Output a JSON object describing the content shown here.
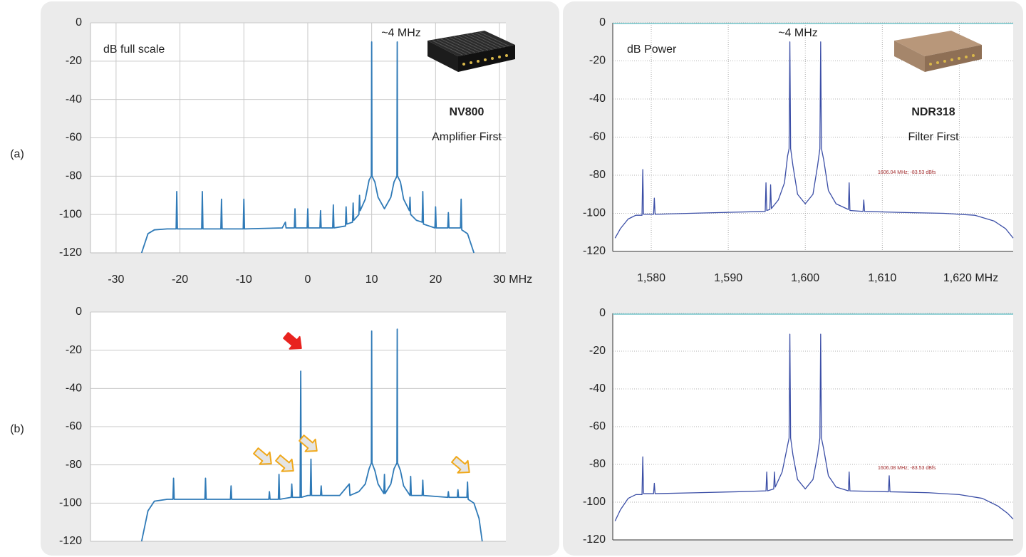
{
  "panel_labels": [
    "(a)",
    "(b)"
  ],
  "chart_data": [
    {
      "type": "line",
      "color": "#2f7ab7",
      "grid": "solid",
      "ylabel": "dB full scale",
      "annotations": [
        "~4 MHz"
      ],
      "device": {
        "name": "NV800",
        "description": "Amplifier First"
      },
      "xlim": [
        -34,
        31
      ],
      "ylim": [
        -120,
        0
      ],
      "xticks": [
        -30,
        -20,
        -10,
        0,
        10,
        20,
        {
          "value": 30,
          "label": "30 MHz"
        }
      ],
      "yticks": [
        0,
        -20,
        -40,
        -60,
        -80,
        -100,
        -120
      ],
      "x": [
        -26,
        -25,
        -24,
        -22,
        -20.6,
        -20.5,
        -20.4,
        -16.6,
        -16.5,
        -16.4,
        -13.6,
        -13.5,
        -13.4,
        -10.1,
        -10,
        -9.9,
        -4,
        -3.5,
        -3.4,
        -2.1,
        -2,
        -1.9,
        -0.1,
        0,
        0.1,
        1.9,
        2,
        2.1,
        3.9,
        4,
        4.1,
        5.9,
        6,
        6.1,
        7,
        7.1,
        7.2,
        8,
        8.1,
        8.2,
        9,
        9.6,
        9.95,
        10,
        10.05,
        10.5,
        11,
        12,
        13,
        13.5,
        13.95,
        14,
        14.05,
        14.5,
        15,
        15.9,
        16,
        16.1,
        17,
        17.9,
        18,
        18.1,
        19,
        19.9,
        20,
        20.1,
        21.9,
        22,
        22.1,
        23.9,
        24,
        24.1,
        25,
        26
      ],
      "values": [
        -120,
        -110,
        -108,
        -107.5,
        -107.5,
        -88,
        -107.5,
        -107.5,
        -88,
        -107.5,
        -107.5,
        -92,
        -107.5,
        -107.5,
        -92,
        -107.5,
        -107,
        -104,
        -107,
        -107,
        -97,
        -107,
        -107,
        -97,
        -107,
        -107,
        -98,
        -107,
        -107,
        -95,
        -107,
        -106,
        -96,
        -105,
        -104,
        -94,
        -103,
        -100,
        -90,
        -98,
        -92,
        -82,
        -80,
        -10,
        -80,
        -83,
        -91,
        -97,
        -91,
        -83,
        -80,
        -10,
        -80,
        -83,
        -92,
        -98,
        -91,
        -100,
        -103,
        -104,
        -88,
        -105,
        -106,
        -107,
        -96,
        -107,
        -107,
        -99,
        -107,
        -107,
        -92,
        -108,
        -110,
        -120
      ]
    },
    {
      "type": "line",
      "color": "#3b4ea6",
      "grid": "dotted",
      "ylabel": "dB Power",
      "annotations": [
        "~4 MHz",
        "1606.04 MHz; -83.53 dBfs"
      ],
      "device": {
        "name": "NDR318",
        "description": "Filter First"
      },
      "xlim": [
        1575,
        1627
      ],
      "ylim": [
        -120,
        0
      ],
      "xticks": [
        {
          "value": 1580,
          "label": "1,580"
        },
        {
          "value": 1590,
          "label": "1,590"
        },
        {
          "value": 1600,
          "label": "1,600"
        },
        {
          "value": 1610,
          "label": "1,610"
        },
        {
          "value": 1620,
          "label": "1,620 MHz"
        }
      ],
      "yticks": [
        0,
        -20,
        -40,
        -60,
        -80,
        -100,
        -120
      ],
      "x": [
        1575.3,
        1576,
        1577,
        1578,
        1578.8,
        1578.9,
        1579,
        1580.3,
        1580.4,
        1580.5,
        1585,
        1590,
        1594.8,
        1594.9,
        1595,
        1595.4,
        1595.5,
        1595.6,
        1596.5,
        1597.3,
        1597.7,
        1597.9,
        1598,
        1598.1,
        1598.4,
        1599,
        1600,
        1601,
        1601.6,
        1601.9,
        1602,
        1602.1,
        1602.4,
        1603,
        1604,
        1605.6,
        1605.7,
        1605.8,
        1607.5,
        1607.6,
        1607.7,
        1612,
        1618,
        1622,
        1624.5,
        1626,
        1627
      ],
      "values": [
        -113,
        -108,
        -103,
        -101,
        -101,
        -77,
        -100.5,
        -100.5,
        -92,
        -100.5,
        -100,
        -99.5,
        -99,
        -84,
        -98.5,
        -98,
        -85,
        -97.5,
        -93,
        -84,
        -70,
        -66,
        -10,
        -66,
        -75,
        -90,
        -95,
        -90,
        -75,
        -66,
        -10,
        -66,
        -72,
        -88,
        -95,
        -98,
        -84,
        -98.5,
        -99,
        -93,
        -99,
        -99.5,
        -100,
        -101,
        -104,
        -108,
        -113
      ]
    },
    {
      "type": "line",
      "color": "#2f7ab7",
      "grid": "solid",
      "xlim": [
        -34,
        31
      ],
      "ylim": [
        -120,
        0
      ],
      "yticks": [
        0,
        -20,
        -40,
        -60,
        -80,
        -100,
        -120
      ],
      "x": [
        -26,
        -25,
        -24,
        -22,
        -21.1,
        -21,
        -20.9,
        -16.1,
        -16,
        -15.9,
        -12.1,
        -12,
        -11.9,
        -6.1,
        -6,
        -5.9,
        -4.6,
        -4.5,
        -4.4,
        -2.6,
        -2.5,
        -2.4,
        -1.2,
        -1.1,
        -1,
        0,
        0.4,
        0.5,
        0.6,
        2,
        2.1,
        2.2,
        5,
        6.5,
        6.6,
        8,
        9,
        9.6,
        9.95,
        10,
        10.05,
        10.5,
        11,
        11.9,
        12,
        12.1,
        13,
        13.5,
        13.95,
        14,
        14.05,
        14.5,
        15,
        16,
        16.1,
        16.2,
        17.9,
        18,
        18.1,
        21.9,
        22,
        22.1,
        23.4,
        23.5,
        23.6,
        24.9,
        25,
        25.1,
        26,
        26.8,
        27.3
      ],
      "values": [
        -120,
        -104,
        -99,
        -98,
        -98,
        -87,
        -98,
        -98,
        -87,
        -98,
        -98,
        -91,
        -98,
        -98,
        -94,
        -98,
        -98,
        -85,
        -98,
        -97,
        -90,
        -97,
        -97,
        -31,
        -97,
        -96,
        -96,
        -77,
        -96,
        -96,
        -91,
        -96,
        -96,
        -90,
        -96,
        -94,
        -90,
        -82,
        -79,
        -10,
        -79,
        -83,
        -90,
        -95,
        -85,
        -95,
        -90,
        -82,
        -79,
        -9,
        -79,
        -83,
        -91,
        -96,
        -86,
        -96,
        -96,
        -88,
        -96,
        -97,
        -94,
        -97,
        -97,
        -93,
        -97,
        -97,
        -89,
        -98,
        -100,
        -108,
        -120
      ]
    },
    {
      "type": "line",
      "color": "#3b4ea6",
      "grid": "dotted",
      "annotations": [
        "1606.08 MHz; -83.53 dBfs"
      ],
      "xlim": [
        1575,
        1627
      ],
      "ylim": [
        -120,
        0
      ],
      "yticks": [
        0,
        -20,
        -40,
        -60,
        -80,
        -100,
        -120
      ],
      "x": [
        1575.3,
        1576,
        1577,
        1578,
        1578.8,
        1578.9,
        1579,
        1580.3,
        1580.4,
        1580.5,
        1586,
        1591,
        1594.9,
        1595,
        1595.1,
        1595.9,
        1596,
        1596.1,
        1597,
        1597.7,
        1597.9,
        1598,
        1598.1,
        1598.4,
        1599,
        1600,
        1601,
        1601.6,
        1601.9,
        1602,
        1602.1,
        1602.4,
        1603,
        1604,
        1605.6,
        1605.7,
        1605.8,
        1610.8,
        1610.9,
        1611,
        1616,
        1620,
        1623,
        1625,
        1626.3,
        1627
      ],
      "values": [
        -110,
        -104,
        -98,
        -96,
        -96,
        -76,
        -95.5,
        -95.5,
        -90,
        -95.5,
        -95,
        -94.5,
        -94,
        -84,
        -94,
        -93,
        -84,
        -92,
        -84,
        -70,
        -66,
        -11,
        -66,
        -75,
        -88,
        -93,
        -88,
        -75,
        -66,
        -11,
        -66,
        -72,
        -86,
        -92,
        -94,
        -84,
        -94,
        -94.5,
        -86,
        -94.5,
        -95,
        -96,
        -98,
        -102,
        -106,
        -109
      ]
    }
  ]
}
